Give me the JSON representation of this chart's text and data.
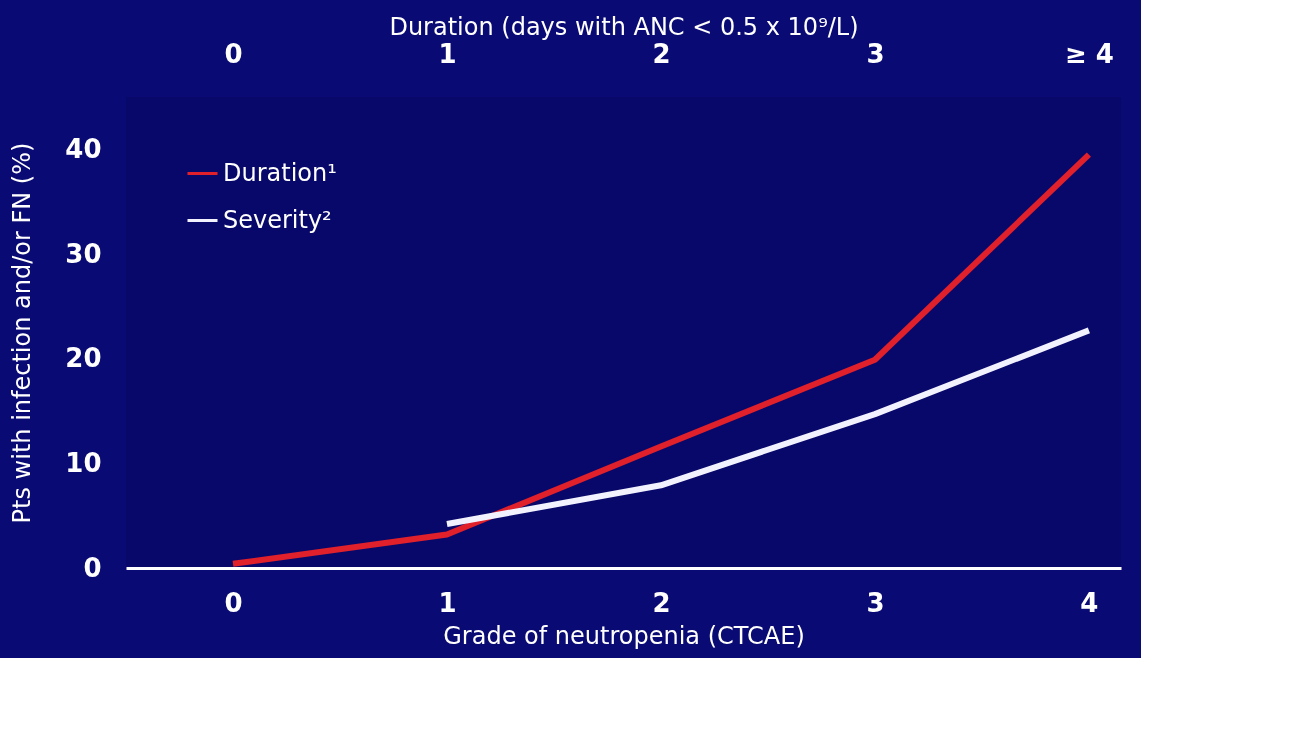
{
  "chart_data": {
    "type": "line",
    "xlabel": "Grade of neutropenia (CTCAE)",
    "x2label": "Duration (days with ANC < 0.5 x 10⁹/L)",
    "ylabel": "Pts with infection and/or FN (%)",
    "x": [
      0,
      1,
      2,
      3,
      4
    ],
    "series": [
      {
        "name": "Duration¹",
        "color": "#e0202a",
        "axis": "x2",
        "values": [
          0.4,
          3.2,
          11.6,
          19.9,
          39.5
        ]
      },
      {
        "name": "Severity²",
        "color": "#f2f2ff",
        "values": [
          null,
          4.2,
          7.9,
          14.7,
          22.7
        ]
      }
    ],
    "xlim": [
      -0.5,
      4.15
    ],
    "xticks": [
      0,
      1,
      2,
      3,
      4
    ],
    "x2lim": [
      -0.5,
      4.15
    ],
    "x2ticks": [
      0,
      1,
      2,
      3,
      {
        "value": 4,
        "label": "≥ 4"
      }
    ],
    "ylim": [
      0,
      45
    ],
    "yticks": [
      0,
      10,
      20,
      30,
      40
    ],
    "grid": false,
    "legend": "top left",
    "line_style": "solid",
    "marker": "none"
  }
}
